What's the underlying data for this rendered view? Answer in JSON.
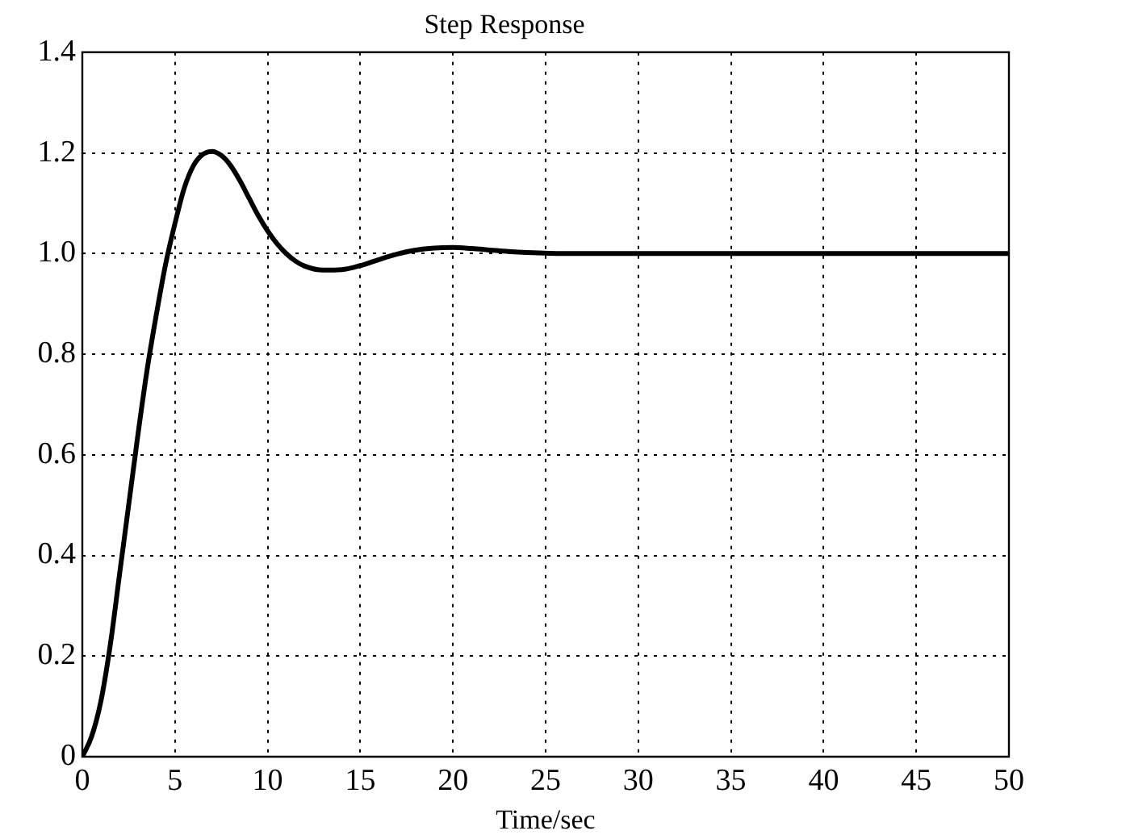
{
  "chart_data": {
    "type": "line",
    "title": "Step Response",
    "xlabel": "Time/sec",
    "x": [
      0,
      0.5,
      1,
      1.5,
      2,
      2.5,
      3,
      3.5,
      4,
      4.5,
      5,
      5.5,
      6,
      6.5,
      7,
      7.5,
      8,
      8.5,
      9,
      9.5,
      10,
      10.5,
      11,
      11.5,
      12,
      13,
      14,
      15,
      16,
      17,
      18,
      19,
      20,
      21,
      22,
      23,
      24,
      26,
      30,
      35,
      40,
      45,
      50
    ],
    "series": [
      {
        "color": "#000000",
        "values": [
          0,
          0.04,
          0.11,
          0.22,
          0.36,
          0.5,
          0.64,
          0.77,
          0.88,
          0.98,
          1.06,
          1.13,
          1.175,
          1.197,
          1.203,
          1.195,
          1.175,
          1.145,
          1.11,
          1.075,
          1.045,
          1.02,
          1.0,
          0.985,
          0.975,
          0.967,
          0.968,
          0.976,
          0.988,
          0.999,
          1.007,
          1.011,
          1.012,
          1.01,
          1.007,
          1.004,
          1.002,
          1.0,
          1.0,
          1.0,
          1.0,
          1.0,
          1.0
        ]
      }
    ],
    "xlim": [
      0,
      50
    ],
    "ylim": [
      0,
      1.4
    ],
    "xticks": [
      0,
      5,
      10,
      15,
      20,
      25,
      30,
      35,
      40,
      45,
      50
    ],
    "yticks": [
      0,
      0.2,
      0.4,
      0.6,
      0.8,
      {
        "value": 1,
        "label": "1.0"
      },
      1.2,
      1.4
    ],
    "grid": true,
    "line_style": "solid"
  }
}
